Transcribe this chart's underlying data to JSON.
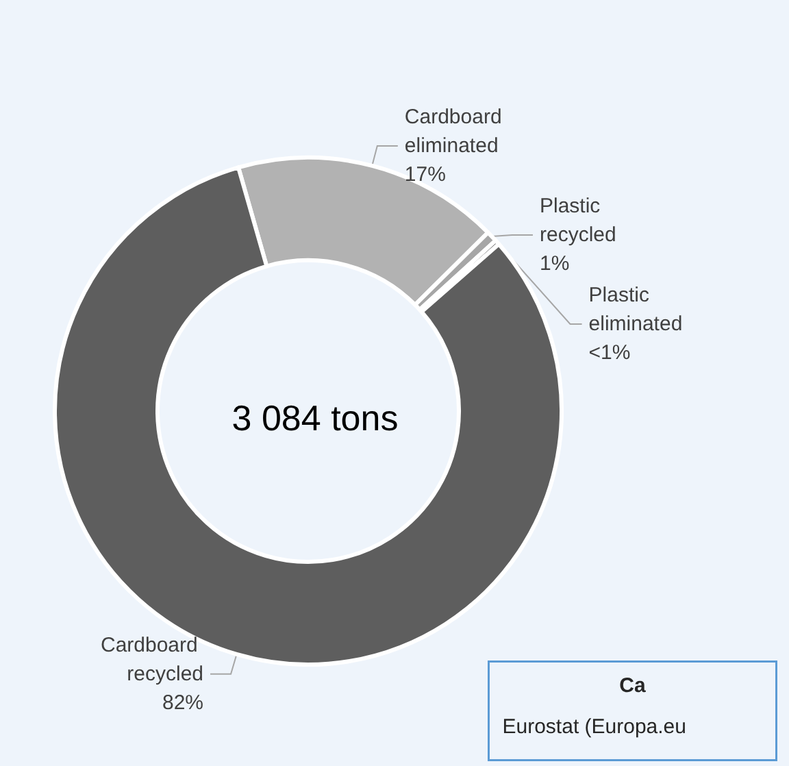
{
  "chart_data": {
    "type": "donut",
    "title": "3 084 tons",
    "categories": [
      "Cardboard eliminated",
      "Plastic recycled",
      "Plastic eliminated",
      "Cardboard recycled"
    ],
    "values": [
      17,
      0.7,
      0.3,
      82
    ],
    "value_labels": [
      "17%",
      "1%",
      "<1%",
      "82%"
    ],
    "colors": [
      "#b2b2b2",
      "#a6a6a6",
      "#5e5e5e",
      "#5e5e5e"
    ],
    "annotations": [
      "Ca",
      "Eurostat (Europa.eu"
    ],
    "legend": false
  }
}
